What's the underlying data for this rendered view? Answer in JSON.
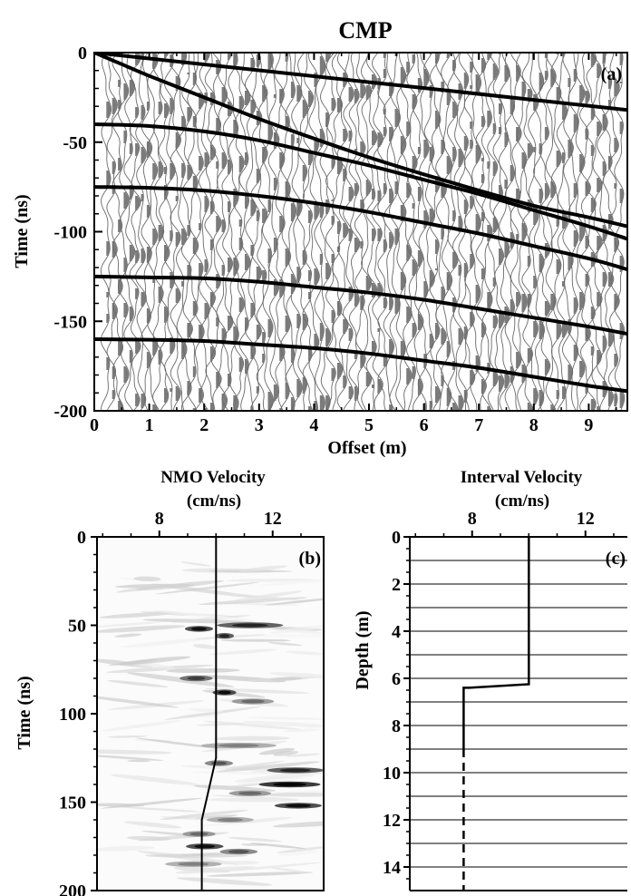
{
  "chart_data": [
    {
      "id": "a",
      "type": "line",
      "title": "CMP",
      "panel_label": "(a)",
      "xlabel": "Offset (m)",
      "ylabel": "Time (ns)",
      "xlim": [
        0,
        9.7
      ],
      "ylim": [
        -200,
        0
      ],
      "xticks": [
        0,
        1,
        2,
        3,
        4,
        5,
        6,
        7,
        8,
        9
      ],
      "yticks": [
        0,
        -50,
        -100,
        -150,
        -200
      ],
      "background": "wiggle-traces",
      "series": [
        {
          "x": [
            0,
            9.7
          ],
          "y": [
            0,
            -32
          ]
        },
        {
          "x": [
            0,
            0.5,
            1,
            2,
            3,
            4,
            5,
            6,
            7,
            8,
            9,
            9.7
          ],
          "y": [
            0,
            -6.5,
            -13,
            -25,
            -37,
            -48,
            -58.5,
            -68,
            -77,
            -85.5,
            -92,
            -97
          ]
        },
        {
          "x": [
            0,
            1,
            2,
            3,
            4,
            5,
            6,
            7,
            8,
            9,
            9.7
          ],
          "y": [
            -40,
            -41,
            -44,
            -49,
            -56,
            -63,
            -71,
            -79,
            -88,
            -97,
            -104
          ]
        },
        {
          "x": [
            0,
            1,
            2,
            3,
            4,
            5,
            6,
            7,
            8,
            9,
            9.7
          ],
          "y": [
            -75,
            -75.5,
            -77,
            -80,
            -84,
            -89,
            -95,
            -101,
            -108,
            -115,
            -121
          ]
        },
        {
          "x": [
            0,
            1,
            2,
            3,
            4,
            5,
            6,
            7,
            8,
            9,
            9.7
          ],
          "y": [
            -125,
            -125.5,
            -126,
            -128,
            -131,
            -134,
            -138,
            -143,
            -148,
            -153,
            -157
          ]
        },
        {
          "x": [
            0,
            1,
            2,
            3,
            4,
            5,
            6,
            7,
            8,
            9,
            9.7
          ],
          "y": [
            -160,
            -160.3,
            -161,
            -163,
            -165,
            -168,
            -172,
            -176,
            -181,
            -186,
            -189
          ]
        }
      ]
    },
    {
      "id": "b",
      "type": "heatmap",
      "title": "NMO Velocity",
      "title_unit": "(cm/ns)",
      "panel_label": "(b)",
      "ylabel": "Time (ns)",
      "xlim": [
        5.8,
        13.8
      ],
      "ylim": [
        0,
        200
      ],
      "xticks": [
        8,
        12
      ],
      "yticks": [
        0,
        50,
        100,
        150,
        200
      ],
      "blobs": [
        {
          "t": 50,
          "v": 11.2,
          "w": 1.4,
          "s": 0.8
        },
        {
          "t": 52,
          "v": 9.4,
          "w": 0.6,
          "s": 0.9
        },
        {
          "t": 56,
          "v": 10.3,
          "w": 0.4,
          "s": 0.8
        },
        {
          "t": 80,
          "v": 9.3,
          "w": 0.7,
          "s": 0.7
        },
        {
          "t": 88,
          "v": 10.3,
          "w": 0.5,
          "s": 0.9
        },
        {
          "t": 93,
          "v": 11.3,
          "w": 0.9,
          "s": 0.5
        },
        {
          "t": 118,
          "v": 10.8,
          "w": 1.6,
          "s": 0.4
        },
        {
          "t": 128,
          "v": 10.1,
          "w": 0.6,
          "s": 0.6
        },
        {
          "t": 132,
          "v": 12.8,
          "w": 1.2,
          "s": 0.8
        },
        {
          "t": 140,
          "v": 12.6,
          "w": 1.3,
          "s": 1.0
        },
        {
          "t": 145,
          "v": 11.2,
          "w": 0.9,
          "s": 0.5
        },
        {
          "t": 152,
          "v": 12.9,
          "w": 1.0,
          "s": 0.9
        },
        {
          "t": 160,
          "v": 10.5,
          "w": 1.0,
          "s": 0.4
        },
        {
          "t": 168,
          "v": 9.4,
          "w": 0.7,
          "s": 0.5
        },
        {
          "t": 175,
          "v": 9.6,
          "w": 0.8,
          "s": 0.9
        },
        {
          "t": 178,
          "v": 10.8,
          "w": 0.8,
          "s": 0.6
        },
        {
          "t": 185,
          "v": 9.2,
          "w": 1.2,
          "s": 0.4
        }
      ],
      "series": [
        {
          "x": [
            10.0,
            10.0,
            10.0,
            9.5,
            9.5
          ],
          "y": [
            0,
            60,
            125,
            160,
            200
          ]
        }
      ]
    },
    {
      "id": "c",
      "type": "line",
      "title": "Interval Velocity",
      "title_unit": "(cm/ns)",
      "panel_label": "(c)",
      "ylabel": "Depth (m)",
      "xlim": [
        5.8,
        13.8
      ],
      "ylim": [
        0,
        15
      ],
      "xticks": [
        8,
        12
      ],
      "yticks": [
        0,
        2,
        4,
        6,
        8,
        10,
        12,
        14
      ],
      "gridlines_y": [
        1,
        2,
        3,
        4,
        5,
        6,
        7,
        8,
        9,
        10,
        11,
        12,
        13,
        14
      ],
      "series": [
        {
          "x": [
            10.0,
            10.0,
            7.9,
            7.7,
            7.7
          ],
          "y": [
            0,
            6.25,
            6.4,
            6.4,
            9.0
          ],
          "style": "solid"
        },
        {
          "x": [
            7.7,
            7.7
          ],
          "y": [
            9.0,
            15
          ],
          "style": "dashed"
        }
      ]
    }
  ]
}
